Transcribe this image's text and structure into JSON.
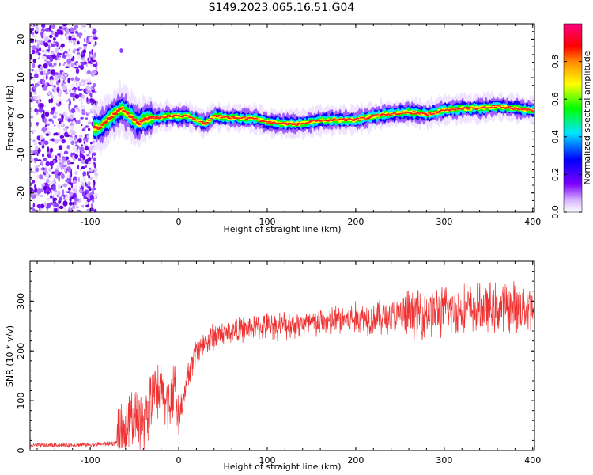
{
  "title": "S149.2023.065.16.51.G04",
  "chart_data": [
    {
      "type": "heatmap",
      "xlabel": "Height of straight line (km)",
      "ylabel": "Frequency (Hz)",
      "xlim": [
        -168,
        402
      ],
      "ylim": [
        -25,
        24
      ],
      "xticks": [
        -100,
        0,
        100,
        200,
        300,
        400
      ],
      "yticks": [
        -20,
        -10,
        0,
        10,
        20
      ],
      "colorbar": {
        "label": "Normalized spectral amplitude",
        "range": [
          0,
          1
        ],
        "ticks": [
          "0.0",
          "0.2",
          "0.4",
          "0.6",
          "0.8"
        ],
        "colormap": "rainbow: white-purple-blue-cyan-green-yellow-red-magenta"
      },
      "ridge": {
        "description_points_x": [
          -90,
          -75,
          -65,
          -55,
          -45,
          -40,
          -30,
          -10,
          10,
          30,
          40,
          60,
          80,
          100,
          120,
          140,
          160,
          180,
          200,
          220,
          240,
          260,
          280,
          300,
          320,
          340,
          360,
          380,
          400
        ],
        "description_points_y": [
          -3,
          0,
          2,
          0,
          -2,
          -1,
          -0.5,
          0,
          0,
          -2,
          0,
          -0.5,
          -0.5,
          -1.5,
          -2,
          -2,
          -1,
          -1,
          -1,
          0,
          0.5,
          1,
          0.5,
          1.5,
          2,
          2,
          2.5,
          2,
          1.5
        ]
      }
    },
    {
      "type": "line",
      "xlabel": "Height of straight line (km)",
      "ylabel": "SNR (10 * v/v)",
      "xlim": [
        -168,
        402
      ],
      "ylim": [
        0,
        380
      ],
      "xticks": [
        -100,
        0,
        100,
        200,
        300,
        400
      ],
      "yticks": [
        0,
        100,
        200,
        300
      ],
      "color": "#ee3333",
      "envelope_x": [
        -168,
        -100,
        -70,
        -60,
        -50,
        -40,
        -30,
        -20,
        -10,
        -5,
        0,
        10,
        20,
        40,
        60,
        100,
        150,
        200,
        250,
        300,
        350,
        402
      ],
      "envelope_y": [
        10,
        12,
        15,
        40,
        70,
        60,
        100,
        120,
        90,
        150,
        60,
        150,
        200,
        230,
        240,
        250,
        255,
        265,
        270,
        280,
        285,
        290
      ]
    }
  ]
}
